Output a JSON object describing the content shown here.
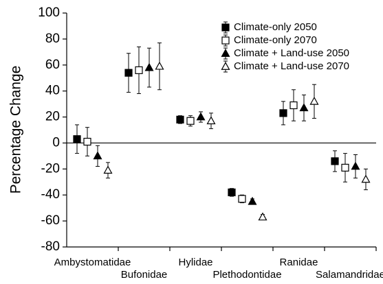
{
  "chart_data": {
    "type": "errorpoint",
    "y_label": "Percentage Change",
    "categories": [
      "Ambystomatidae",
      "Bufonidae",
      "Hylidae",
      "Plethodontidae",
      "Ranidae",
      "Salamandridae"
    ],
    "series": [
      {
        "name": "Climate-only 2050",
        "color": "#000000",
        "marker": "square",
        "filled": true,
        "values": [
          3,
          54,
          18,
          -38,
          23,
          -14
        ],
        "errors": [
          11,
          15,
          3,
          3,
          9,
          8
        ]
      },
      {
        "name": "Climate-only 2070",
        "color": "#000000",
        "marker": "square",
        "filled": false,
        "values": [
          1,
          56,
          17,
          -43,
          29,
          -19
        ],
        "errors": [
          11,
          18,
          4,
          3,
          12,
          11
        ]
      },
      {
        "name": "Climate + Land-use 2050",
        "color": "#000000",
        "marker": "triangle",
        "filled": true,
        "values": [
          -10,
          58,
          20,
          -45,
          27,
          -18
        ],
        "errors": [
          8,
          15,
          4,
          2,
          10,
          9
        ]
      },
      {
        "name": "Climate + Land-use 2070",
        "color": "#000000",
        "marker": "triangle",
        "filled": false,
        "values": [
          -21,
          59,
          17,
          -57,
          32,
          -28
        ],
        "errors": [
          6,
          18,
          6,
          2,
          13,
          8
        ]
      }
    ],
    "ylim": [
      -80,
      100
    ],
    "yticks": [
      -80,
      -60,
      -40,
      -20,
      0,
      20,
      40,
      60,
      80,
      100
    ],
    "legend": "upper right"
  }
}
